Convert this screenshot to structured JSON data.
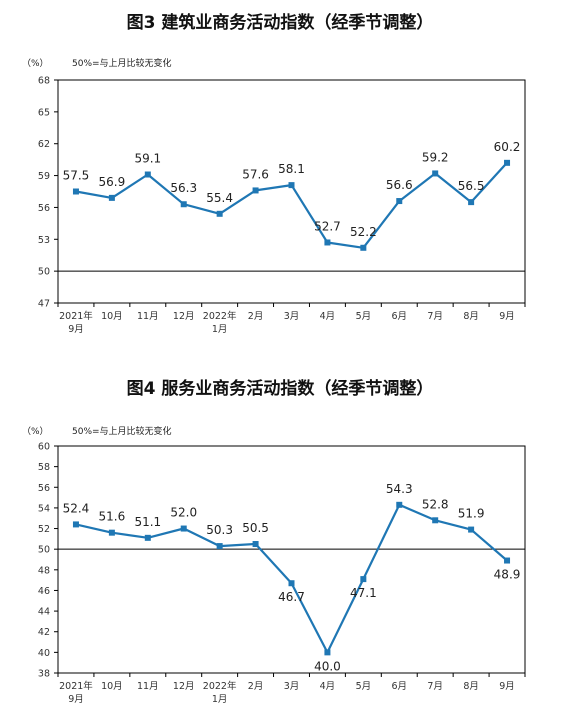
{
  "chart_data": [
    {
      "type": "line",
      "title": "图3  建筑业商务活动指数（经季节调整）",
      "unit_label": "（%）",
      "reference_note": "50%=与上月比较无变化",
      "reference_line": 50,
      "ylim": [
        47,
        68
      ],
      "yticks": [
        47,
        50,
        53,
        56,
        59,
        62,
        65,
        68
      ],
      "categories": [
        [
          "2021年",
          "9月"
        ],
        [
          "10月"
        ],
        [
          "11月"
        ],
        [
          "12月"
        ],
        [
          "2022年",
          "1月"
        ],
        [
          "2月"
        ],
        [
          "3月"
        ],
        [
          "4月"
        ],
        [
          "5月"
        ],
        [
          "6月"
        ],
        [
          "7月"
        ],
        [
          "8月"
        ],
        [
          "9月"
        ]
      ],
      "values": [
        57.5,
        56.9,
        59.1,
        56.3,
        55.4,
        57.6,
        58.1,
        52.7,
        52.2,
        56.6,
        59.2,
        56.5,
        60.2
      ],
      "value_labels": [
        "57.5",
        "56.9",
        "59.1",
        "56.3",
        "55.4",
        "57.6",
        "58.1",
        "52.7",
        "52.2",
        "56.6",
        "59.2",
        "56.5",
        "60.2"
      ],
      "color": "#1f77b4",
      "grid": false,
      "legend": "none"
    },
    {
      "type": "line",
      "title": "图4  服务业商务活动指数（经季节调整）",
      "unit_label": "（%）",
      "reference_note": "50%=与上月比较无变化",
      "reference_line": 50,
      "ylim": [
        38,
        60
      ],
      "yticks": [
        38,
        40,
        42,
        44,
        46,
        48,
        50,
        52,
        54,
        56,
        58,
        60
      ],
      "categories": [
        [
          "2021年",
          "9月"
        ],
        [
          "10月"
        ],
        [
          "11月"
        ],
        [
          "12月"
        ],
        [
          "2022年",
          "1月"
        ],
        [
          "2月"
        ],
        [
          "3月"
        ],
        [
          "4月"
        ],
        [
          "5月"
        ],
        [
          "6月"
        ],
        [
          "7月"
        ],
        [
          "8月"
        ],
        [
          "9月"
        ]
      ],
      "values": [
        52.4,
        51.6,
        51.1,
        52.0,
        50.3,
        50.5,
        46.7,
        40.0,
        47.1,
        54.3,
        52.8,
        51.9,
        48.9
      ],
      "value_labels": [
        "52.4",
        "51.6",
        "51.1",
        "52.0",
        "50.3",
        "50.5",
        "46.7",
        "40.0",
        "47.1",
        "54.3",
        "52.8",
        "51.9",
        "48.9"
      ],
      "color": "#1f77b4",
      "grid": false,
      "legend": "none"
    }
  ]
}
